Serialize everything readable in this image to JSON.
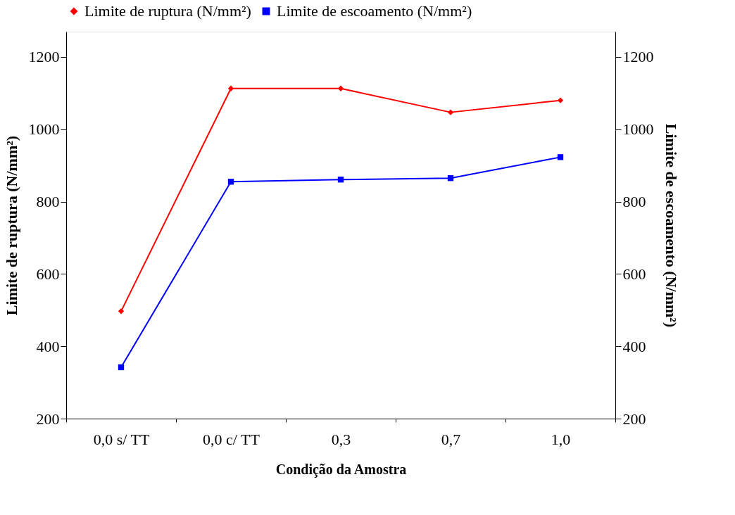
{
  "chart_data": {
    "type": "line",
    "xlabel": "Condição da Amostra",
    "ylabel": "Limite de ruptura (N/mm²)",
    "y2label": "Limite de escoamento (N/mm²)",
    "categories": [
      "0,0 s/ TT",
      "0,0 c/ TT",
      "0,3",
      "0,7",
      "1,0"
    ],
    "series": [
      {
        "name": "Limite de ruptura (N/mm²)",
        "color": "#ff0000",
        "marker": "diamond",
        "values": [
          497,
          1113,
          1113,
          1047,
          1080
        ]
      },
      {
        "name": "Limite de escoamento (N/mm²)",
        "color": "#0000ff",
        "marker": "square",
        "axis": "y2",
        "values": [
          342,
          855,
          861,
          865,
          923
        ]
      }
    ],
    "ylim": [
      200,
      1270
    ],
    "yticks": [
      200,
      400,
      600,
      800,
      1000,
      1200
    ],
    "y2lim": [
      200,
      1270
    ],
    "y2ticks": [
      200,
      400,
      600,
      800,
      1000,
      1200
    ],
    "grid": false,
    "legend": "top",
    "line_style": "solid"
  }
}
